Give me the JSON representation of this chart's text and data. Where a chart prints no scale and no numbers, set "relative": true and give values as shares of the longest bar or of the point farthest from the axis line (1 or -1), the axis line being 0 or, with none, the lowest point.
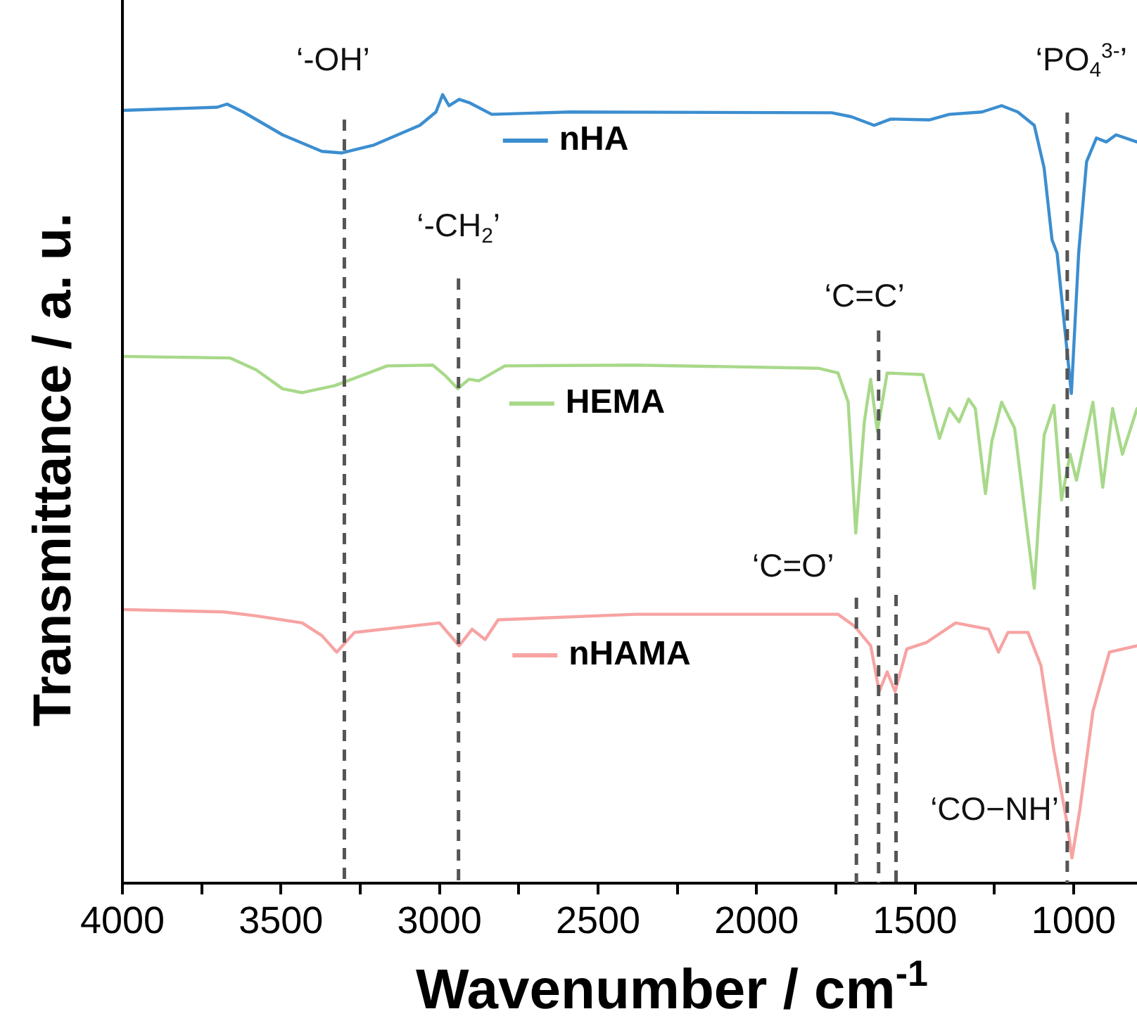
{
  "chart_data": {
    "type": "line",
    "relative": true,
    "xlabel": "Wavenumber / cm$^{-1}$",
    "ylabel": "Transmittance / a. u.",
    "xlim": [
      4000,
      800
    ],
    "xticks": [
      4000,
      {
        "value": 3750,
        "label": null
      },
      3500,
      {
        "value": 3250,
        "label": null
      },
      3000,
      {
        "value": 2750,
        "label": null
      },
      2500,
      {
        "value": 2250,
        "label": null
      },
      2000,
      {
        "value": 1750,
        "label": null
      },
      1500,
      {
        "value": 1250,
        "label": null
      },
      1000
    ],
    "tick_labels": "x",
    "legend": "top",
    "marker": "none",
    "line_style": "solid",
    "series": [
      {
        "name": "nHA",
        "color": "#3c8ed0",
        "x": [
          4000,
          3701,
          3670,
          3619,
          3495,
          3371,
          3309,
          3207,
          3062,
          3011,
          2990,
          2970,
          2938,
          2907,
          2835,
          2588,
          1763,
          1701,
          1629,
          1577,
          1454,
          1392,
          1289,
          1227,
          1176,
          1124,
          1093,
          1068,
          1052,
          1031,
          1007,
          984,
          959,
          928,
          897,
          866,
          800
        ],
        "values": [
          0.98,
          0.984,
          0.988,
          0.978,
          0.949,
          0.928,
          0.926,
          0.936,
          0.961,
          0.978,
          1,
          0.986,
          0.994,
          0.99,
          0.975,
          0.978,
          0.977,
          0.972,
          0.961,
          0.969,
          0.968,
          0.975,
          0.978,
          0.986,
          0.978,
          0.961,
          0.907,
          0.816,
          0.799,
          0.716,
          0.621,
          0.799,
          0.915,
          0.945,
          0.94,
          0.949,
          0.94
        ]
      },
      {
        "name": "HEMA",
        "color": "#a8d98a",
        "x": [
          4000,
          3660,
          3578,
          3495,
          3433,
          3330,
          3165,
          3021,
          2980,
          2942,
          2907,
          2876,
          2794,
          2382,
          1805,
          1743,
          1711,
          1687,
          1660,
          1640,
          1619,
          1588,
          1475,
          1423,
          1392,
          1361,
          1331,
          1310,
          1278,
          1258,
          1227,
          1186,
          1124,
          1093,
          1062,
          1038,
          1011,
          991,
          939,
          908,
          877,
          846,
          800
        ],
        "values": [
          0.668,
          0.666,
          0.651,
          0.627,
          0.622,
          0.631,
          0.656,
          0.657,
          0.643,
          0.627,
          0.639,
          0.637,
          0.656,
          0.657,
          0.653,
          0.647,
          0.61,
          0.444,
          0.585,
          0.639,
          0.573,
          0.647,
          0.645,
          0.564,
          0.602,
          0.585,
          0.614,
          0.602,
          0.494,
          0.56,
          0.61,
          0.577,
          0.374,
          0.568,
          0.606,
          0.486,
          0.544,
          0.511,
          0.61,
          0.502,
          0.602,
          0.544,
          0.602
        ]
      },
      {
        "name": "nHAMA",
        "color": "#f7a3a3",
        "x": [
          4000,
          3681,
          3578,
          3433,
          3371,
          3324,
          3268,
          3000,
          2938,
          2897,
          2856,
          2815,
          2382,
          1743,
          1691,
          1640,
          1613,
          1588,
          1563,
          1526,
          1465,
          1372,
          1268,
          1237,
          1207,
          1144,
          1103,
          1062,
          1021,
          1005,
          980,
          939,
          887,
          800
        ],
        "values": [
          0.347,
          0.344,
          0.339,
          0.33,
          0.314,
          0.293,
          0.318,
          0.33,
          0.301,
          0.322,
          0.309,
          0.334,
          0.341,
          0.341,
          0.326,
          0.301,
          0.243,
          0.268,
          0.243,
          0.297,
          0.305,
          0.33,
          0.322,
          0.293,
          0.318,
          0.318,
          0.276,
          0.168,
          0.077,
          0.032,
          0.094,
          0.218,
          0.293,
          0.301
        ]
      }
    ],
    "ref_lines": [
      {
        "axis": "x",
        "value": 3300,
        "label": "‘-OH’",
        "color": "#555555",
        "line_style": "dashed"
      },
      {
        "axis": "x",
        "value": 2940,
        "label": "‘-CH$_{2}$’",
        "color": "#555555",
        "line_style": "dashed"
      },
      {
        "axis": "x",
        "value": 1615,
        "label": "‘C=C’",
        "color": "#555555",
        "line_style": "dashed"
      },
      {
        "axis": "x",
        "value": 1020,
        "label": "‘PO$_{4}$$^{3-}$’",
        "color": "#555555",
        "line_style": "dashed"
      },
      {
        "axis": "x",
        "value": 1685,
        "label": "‘C=O’",
        "color": "#555555",
        "line_style": "dashed"
      },
      {
        "axis": "x",
        "value": 1560,
        "label": "‘CO−NH’",
        "color": "#555555",
        "line_style": "dashed"
      }
    ]
  }
}
